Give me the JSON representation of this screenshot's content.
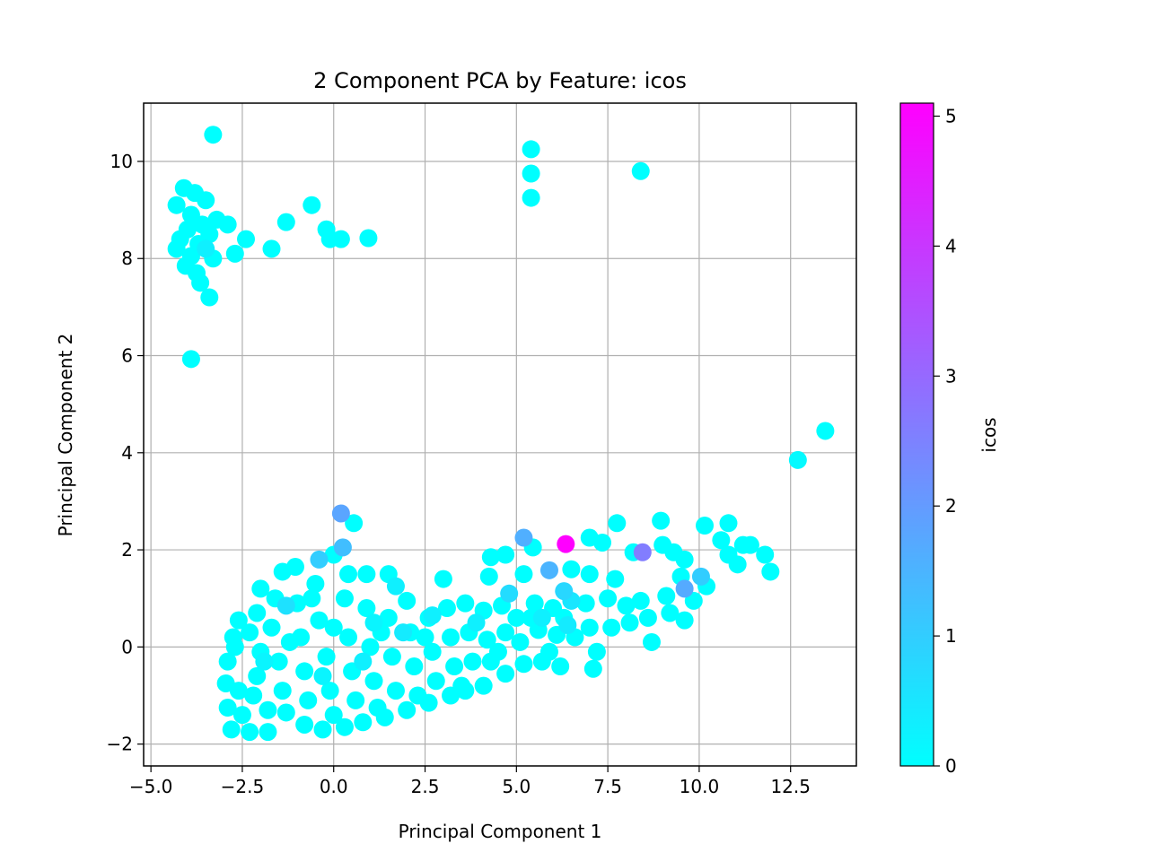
{
  "chart_data": {
    "type": "scatter",
    "title": "2 Component PCA by Feature: icos",
    "xlabel": "Principal Component 1",
    "ylabel": "Principal Component 2",
    "xlim": [
      -5.2,
      14.3
    ],
    "ylim": [
      -2.45,
      11.2
    ],
    "xticks": [
      -5.0,
      -2.5,
      0.0,
      2.5,
      5.0,
      7.5,
      10.0,
      12.5
    ],
    "xtick_labels": [
      "−5.0",
      "−2.5",
      "0.0",
      "2.5",
      "5.0",
      "7.5",
      "10.0",
      "12.5"
    ],
    "yticks": [
      -2,
      0,
      2,
      4,
      6,
      8,
      10
    ],
    "ytick_labels": [
      "−2",
      "0",
      "2",
      "4",
      "6",
      "8",
      "10"
    ],
    "grid": true,
    "colormap": "cool",
    "colorbar": {
      "label": "icos",
      "range": [
        0,
        5.1
      ],
      "ticks": [
        0,
        1,
        2,
        3,
        4,
        5
      ],
      "tick_labels": [
        "0",
        "1",
        "2",
        "3",
        "4",
        "5"
      ],
      "color_low": "#00ffff",
      "color_high": "#ff00ff"
    },
    "points": [
      {
        "x": -3.3,
        "y": 10.55,
        "c": 0
      },
      {
        "x": 5.4,
        "y": 10.25,
        "c": 0
      },
      {
        "x": 5.4,
        "y": 9.75,
        "c": 0
      },
      {
        "x": 5.4,
        "y": 9.25,
        "c": 0
      },
      {
        "x": 8.4,
        "y": 9.8,
        "c": 0
      },
      {
        "x": -4.1,
        "y": 9.45,
        "c": 0
      },
      {
        "x": -3.8,
        "y": 9.35,
        "c": 0
      },
      {
        "x": -4.3,
        "y": 9.1,
        "c": 0
      },
      {
        "x": -3.5,
        "y": 9.2,
        "c": 0
      },
      {
        "x": -3.9,
        "y": 8.9,
        "c": 0
      },
      {
        "x": -4.0,
        "y": 8.6,
        "c": 0
      },
      {
        "x": -3.6,
        "y": 8.7,
        "c": 0
      },
      {
        "x": -3.2,
        "y": 8.8,
        "c": 0
      },
      {
        "x": -2.9,
        "y": 8.7,
        "c": 0
      },
      {
        "x": -4.2,
        "y": 8.4,
        "c": 0
      },
      {
        "x": -3.7,
        "y": 8.3,
        "c": 0
      },
      {
        "x": -3.4,
        "y": 8.5,
        "c": 0
      },
      {
        "x": -3.5,
        "y": 8.2,
        "c": 0.3
      },
      {
        "x": -4.3,
        "y": 8.2,
        "c": 0
      },
      {
        "x": -3.9,
        "y": 8.05,
        "c": 0
      },
      {
        "x": -3.3,
        "y": 8.0,
        "c": 0
      },
      {
        "x": -4.05,
        "y": 7.85,
        "c": 0
      },
      {
        "x": -3.75,
        "y": 7.7,
        "c": 0
      },
      {
        "x": -3.65,
        "y": 7.5,
        "c": 0
      },
      {
        "x": -3.4,
        "y": 7.2,
        "c": 0
      },
      {
        "x": -3.9,
        "y": 5.93,
        "c": 0
      },
      {
        "x": -2.7,
        "y": 8.1,
        "c": 0
      },
      {
        "x": -2.4,
        "y": 8.4,
        "c": 0
      },
      {
        "x": -1.7,
        "y": 8.2,
        "c": 0
      },
      {
        "x": -1.3,
        "y": 8.75,
        "c": 0
      },
      {
        "x": -0.6,
        "y": 9.1,
        "c": 0
      },
      {
        "x": -0.2,
        "y": 8.6,
        "c": 0
      },
      {
        "x": -0.1,
        "y": 8.4,
        "c": 0
      },
      {
        "x": 0.2,
        "y": 8.4,
        "c": 0
      },
      {
        "x": 0.95,
        "y": 8.42,
        "c": 0
      },
      {
        "x": 12.7,
        "y": 3.85,
        "c": 0.1
      },
      {
        "x": 13.45,
        "y": 4.45,
        "c": 0
      },
      {
        "x": 6.35,
        "y": 2.12,
        "c": 5.1
      },
      {
        "x": 0.2,
        "y": 2.75,
        "c": 1.8
      },
      {
        "x": 0.55,
        "y": 2.55,
        "c": 0
      },
      {
        "x": 0.25,
        "y": 2.05,
        "c": 1.3
      },
      {
        "x": 5.2,
        "y": 2.25,
        "c": 1.6
      },
      {
        "x": 8.45,
        "y": 1.95,
        "c": 2.6
      },
      {
        "x": 5.45,
        "y": 2.05,
        "c": 0
      },
      {
        "x": 5.9,
        "y": 1.58,
        "c": 1.5
      },
      {
        "x": 9.6,
        "y": 1.2,
        "c": 1.7
      },
      {
        "x": 10.05,
        "y": 1.45,
        "c": 1.0
      },
      {
        "x": -0.4,
        "y": 1.8,
        "c": 1.0
      },
      {
        "x": -1.3,
        "y": 0.85,
        "c": 0.6
      },
      {
        "x": 7.0,
        "y": 2.25,
        "c": 0
      },
      {
        "x": 7.35,
        "y": 2.15,
        "c": 0
      },
      {
        "x": 7.75,
        "y": 2.55,
        "c": 0
      },
      {
        "x": 8.95,
        "y": 2.6,
        "c": 0
      },
      {
        "x": 10.15,
        "y": 2.5,
        "c": 0
      },
      {
        "x": 10.8,
        "y": 2.55,
        "c": 0
      },
      {
        "x": 10.6,
        "y": 2.2,
        "c": 0
      },
      {
        "x": 11.2,
        "y": 2.1,
        "c": 0
      },
      {
        "x": 11.4,
        "y": 2.1,
        "c": 0
      },
      {
        "x": 11.8,
        "y": 1.9,
        "c": 0
      },
      {
        "x": 11.95,
        "y": 1.55,
        "c": 0
      },
      {
        "x": 10.8,
        "y": 1.9,
        "c": 0
      },
      {
        "x": 11.05,
        "y": 1.7,
        "c": 0
      },
      {
        "x": 9.0,
        "y": 2.1,
        "c": 0
      },
      {
        "x": 9.3,
        "y": 1.95,
        "c": 0
      },
      {
        "x": 9.6,
        "y": 1.8,
        "c": 0
      },
      {
        "x": 9.5,
        "y": 1.45,
        "c": 0
      },
      {
        "x": 10.2,
        "y": 1.25,
        "c": 0
      },
      {
        "x": 9.85,
        "y": 0.95,
        "c": 0
      },
      {
        "x": 9.6,
        "y": 0.55,
        "c": 0
      },
      {
        "x": 9.2,
        "y": 0.7,
        "c": 0
      },
      {
        "x": 8.4,
        "y": 0.95,
        "c": 0
      },
      {
        "x": 8.2,
        "y": 1.95,
        "c": 0
      },
      {
        "x": 8.7,
        "y": 0.1,
        "c": 0
      },
      {
        "x": 7.1,
        "y": -0.45,
        "c": 0
      },
      {
        "x": 6.2,
        "y": -0.4,
        "c": 0
      },
      {
        "x": 5.7,
        "y": -0.3,
        "c": 0
      },
      {
        "x": 4.3,
        "y": 1.85,
        "c": 0
      },
      {
        "x": 4.7,
        "y": 1.9,
        "c": 0
      },
      {
        "x": 4.25,
        "y": 1.45,
        "c": 0
      },
      {
        "x": 5.2,
        "y": 1.5,
        "c": 0
      },
      {
        "x": 6.5,
        "y": 1.6,
        "c": 0
      },
      {
        "x": 7.0,
        "y": 1.5,
        "c": 0
      },
      {
        "x": 7.7,
        "y": 1.4,
        "c": 0
      },
      {
        "x": 8.0,
        "y": 0.85,
        "c": 0
      },
      {
        "x": 4.8,
        "y": 1.1,
        "c": 0.7
      },
      {
        "x": 6.3,
        "y": 1.15,
        "c": 0.8
      },
      {
        "x": 6.5,
        "y": 0.95,
        "c": 0.5
      },
      {
        "x": 6.4,
        "y": 0.45,
        "c": 0.4
      },
      {
        "x": 3.0,
        "y": 1.4,
        "c": 0
      },
      {
        "x": 2.7,
        "y": 0.65,
        "c": 0.3
      },
      {
        "x": 1.5,
        "y": 1.5,
        "c": 0
      },
      {
        "x": 0.9,
        "y": 1.5,
        "c": 0
      },
      {
        "x": 1.7,
        "y": 1.25,
        "c": 0.3
      },
      {
        "x": 1.1,
        "y": 0.5,
        "c": 0.2
      },
      {
        "x": -0.5,
        "y": 1.3,
        "c": 0
      },
      {
        "x": -1.4,
        "y": 1.55,
        "c": 0
      },
      {
        "x": -1.05,
        "y": 1.65,
        "c": 0
      },
      {
        "x": -2.0,
        "y": 1.2,
        "c": 0
      },
      {
        "x": -2.6,
        "y": 0.55,
        "c": 0
      },
      {
        "x": -2.75,
        "y": 0.2,
        "c": 0
      },
      {
        "x": -2.9,
        "y": -0.3,
        "c": 0
      },
      {
        "x": -2.95,
        "y": -0.75,
        "c": 0
      },
      {
        "x": -2.9,
        "y": -1.25,
        "c": 0
      },
      {
        "x": -2.8,
        "y": -1.7,
        "c": 0
      },
      {
        "x": -2.3,
        "y": -1.75,
        "c": 0
      },
      {
        "x": -1.8,
        "y": -1.75,
        "c": 0
      },
      {
        "x": -0.8,
        "y": -1.6,
        "c": 0
      },
      {
        "x": -0.3,
        "y": -1.7,
        "c": 0
      },
      {
        "x": 0.3,
        "y": -1.65,
        "c": 0
      },
      {
        "x": 0.8,
        "y": -1.55,
        "c": 0
      },
      {
        "x": 1.4,
        "y": -1.45,
        "c": 0
      },
      {
        "x": 2.0,
        "y": -1.3,
        "c": 0
      },
      {
        "x": 2.6,
        "y": -1.15,
        "c": 0
      },
      {
        "x": 3.2,
        "y": -1.0,
        "c": 0
      },
      {
        "x": 3.6,
        "y": -0.9,
        "c": 0
      },
      {
        "x": 4.1,
        "y": -0.8,
        "c": 0
      },
      {
        "x": 4.7,
        "y": -0.55,
        "c": 0
      },
      {
        "x": 5.2,
        "y": -0.35,
        "c": 0
      },
      {
        "x": -2.5,
        "y": -1.4,
        "c": 0
      },
      {
        "x": -2.2,
        "y": -1.0,
        "c": 0
      },
      {
        "x": -2.1,
        "y": -0.6,
        "c": 0
      },
      {
        "x": -2.0,
        "y": -0.1,
        "c": 0
      },
      {
        "x": -2.3,
        "y": 0.3,
        "c": 0
      },
      {
        "x": -1.7,
        "y": 0.4,
        "c": 0
      },
      {
        "x": -1.5,
        "y": -0.3,
        "c": 0
      },
      {
        "x": -1.4,
        "y": -0.9,
        "c": 0
      },
      {
        "x": -1.3,
        "y": -1.35,
        "c": 0
      },
      {
        "x": -1.0,
        "y": 0.9,
        "c": 0
      },
      {
        "x": -0.9,
        "y": 0.2,
        "c": 0
      },
      {
        "x": -0.8,
        "y": -0.5,
        "c": 0
      },
      {
        "x": -0.7,
        "y": -1.1,
        "c": 0
      },
      {
        "x": -0.4,
        "y": 0.55,
        "c": 0
      },
      {
        "x": -0.2,
        "y": -0.2,
        "c": 0
      },
      {
        "x": -0.1,
        "y": -0.9,
        "c": 0
      },
      {
        "x": 0.0,
        "y": -1.4,
        "c": 0
      },
      {
        "x": 0.3,
        "y": 1.0,
        "c": 0
      },
      {
        "x": 0.4,
        "y": 0.2,
        "c": 0
      },
      {
        "x": 0.5,
        "y": -0.5,
        "c": 0
      },
      {
        "x": 0.6,
        "y": -1.1,
        "c": 0
      },
      {
        "x": 0.9,
        "y": 0.8,
        "c": 0
      },
      {
        "x": 1.0,
        "y": 0.0,
        "c": 0
      },
      {
        "x": 1.1,
        "y": -0.7,
        "c": 0
      },
      {
        "x": 1.2,
        "y": -1.25,
        "c": 0
      },
      {
        "x": 1.5,
        "y": 0.6,
        "c": 0
      },
      {
        "x": 1.6,
        "y": -0.2,
        "c": 0
      },
      {
        "x": 1.7,
        "y": -0.9,
        "c": 0
      },
      {
        "x": 2.0,
        "y": 0.95,
        "c": 0
      },
      {
        "x": 2.1,
        "y": 0.3,
        "c": 0
      },
      {
        "x": 2.2,
        "y": -0.4,
        "c": 0
      },
      {
        "x": 2.3,
        "y": -1.0,
        "c": 0
      },
      {
        "x": 2.6,
        "y": 0.6,
        "c": 0
      },
      {
        "x": 2.7,
        "y": -0.1,
        "c": 0
      },
      {
        "x": 2.8,
        "y": -0.7,
        "c": 0
      },
      {
        "x": 3.1,
        "y": 0.8,
        "c": 0
      },
      {
        "x": 3.2,
        "y": 0.2,
        "c": 0
      },
      {
        "x": 3.3,
        "y": -0.4,
        "c": 0
      },
      {
        "x": 3.6,
        "y": 0.9,
        "c": 0
      },
      {
        "x": 3.7,
        "y": 0.3,
        "c": 0
      },
      {
        "x": 3.8,
        "y": -0.3,
        "c": 0
      },
      {
        "x": 4.1,
        "y": 0.75,
        "c": 0
      },
      {
        "x": 4.2,
        "y": 0.15,
        "c": 0
      },
      {
        "x": 4.3,
        "y": -0.3,
        "c": 0
      },
      {
        "x": 4.6,
        "y": 0.85,
        "c": 0
      },
      {
        "x": 4.7,
        "y": 0.3,
        "c": 0
      },
      {
        "x": 5.0,
        "y": 0.6,
        "c": 0
      },
      {
        "x": 5.1,
        "y": 0.1,
        "c": 0
      },
      {
        "x": 5.5,
        "y": 0.9,
        "c": 0
      },
      {
        "x": 5.6,
        "y": 0.35,
        "c": 0
      },
      {
        "x": 5.9,
        "y": -0.1,
        "c": 0
      },
      {
        "x": 6.0,
        "y": 0.8,
        "c": 0
      },
      {
        "x": 6.1,
        "y": 0.25,
        "c": 0
      },
      {
        "x": 6.6,
        "y": 0.2,
        "c": 0
      },
      {
        "x": 6.9,
        "y": 0.9,
        "c": 0
      },
      {
        "x": 7.0,
        "y": 0.4,
        "c": 0
      },
      {
        "x": 7.2,
        "y": -0.1,
        "c": 0
      },
      {
        "x": 7.5,
        "y": 1.0,
        "c": 0
      },
      {
        "x": 7.6,
        "y": 0.4,
        "c": 0
      },
      {
        "x": 8.1,
        "y": 0.5,
        "c": 0
      },
      {
        "x": 8.6,
        "y": 0.6,
        "c": 0
      },
      {
        "x": 9.1,
        "y": 1.05,
        "c": 0
      },
      {
        "x": -1.8,
        "y": -1.3,
        "c": 0
      },
      {
        "x": -2.6,
        "y": -0.9,
        "c": 0
      },
      {
        "x": -2.7,
        "y": 0.0,
        "c": 0
      },
      {
        "x": -1.2,
        "y": 0.1,
        "c": 0
      },
      {
        "x": 0.0,
        "y": 0.4,
        "c": 0
      },
      {
        "x": 1.3,
        "y": 0.3,
        "c": 0
      },
      {
        "x": 2.5,
        "y": 0.2,
        "c": 0
      },
      {
        "x": 3.5,
        "y": -0.8,
        "c": 0
      },
      {
        "x": 4.5,
        "y": -0.1,
        "c": 0
      },
      {
        "x": 5.4,
        "y": 0.6,
        "c": 0
      },
      {
        "x": 6.3,
        "y": 0.6,
        "c": 0
      },
      {
        "x": -0.6,
        "y": 1.0,
        "c": 0
      },
      {
        "x": -1.6,
        "y": 1.0,
        "c": 0
      },
      {
        "x": -2.1,
        "y": 0.7,
        "c": 0
      },
      {
        "x": 0.4,
        "y": 1.5,
        "c": 0
      },
      {
        "x": 0.0,
        "y": 1.9,
        "c": 0
      },
      {
        "x": 1.9,
        "y": 0.3,
        "c": 0.4
      },
      {
        "x": 0.8,
        "y": -0.3,
        "c": 0.3
      },
      {
        "x": -0.3,
        "y": -0.6,
        "c": 0.2
      },
      {
        "x": -1.9,
        "y": -0.3,
        "c": 0.2
      },
      {
        "x": 3.9,
        "y": 0.5,
        "c": 0.3
      },
      {
        "x": 5.7,
        "y": 0.6,
        "c": 0.3
      }
    ]
  }
}
